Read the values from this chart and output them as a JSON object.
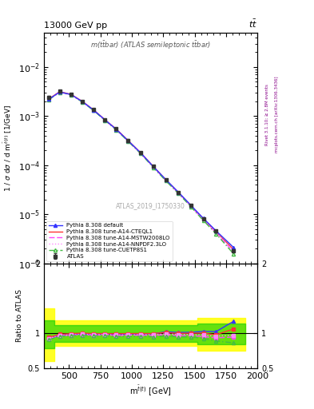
{
  "title_top": "13000 GeV pp",
  "title_right": "t$\\bar{t}$",
  "inner_title": "m(t$\\bar{t}$bar) (ATLAS semileptonic t$\\bar{t}$bar)",
  "watermark": "ATLAS_2019_I1750330",
  "right_label1": "Rivet 3.1.10; ≥ 2.8M events",
  "right_label2": "mcplots.cern.ch [arXiv:1306.3436]",
  "x_centers": [
    340,
    425,
    515,
    605,
    695,
    785,
    875,
    970,
    1070,
    1170,
    1270,
    1370,
    1470,
    1570,
    1670,
    1810
  ],
  "atlas_y": [
    0.0024,
    0.0032,
    0.0028,
    0.002,
    0.00135,
    0.00085,
    0.00055,
    0.00032,
    0.00018,
    9.5e-05,
    5e-05,
    2.8e-05,
    1.5e-05,
    8e-06,
    4.5e-06,
    1.8e-06
  ],
  "atlas_err": [
    0.00015,
    0.00015,
    0.00012,
    8e-05,
    5e-05,
    3.5e-05,
    2.5e-05,
    1.5e-05,
    8e-06,
    4e-06,
    2.2e-06,
    1.2e-06,
    7e-07,
    4e-07,
    2e-07,
    1e-07
  ],
  "py_default_y": [
    0.0022,
    0.0031,
    0.00275,
    0.00198,
    0.00133,
    0.00084,
    0.00054,
    0.000315,
    0.000178,
    9.4e-05,
    5.1e-05,
    2.82e-05,
    1.52e-05,
    8.2e-06,
    4.6e-06,
    2.1e-06
  ],
  "py_cteql1_y": [
    0.00225,
    0.00315,
    0.00278,
    0.002,
    0.00134,
    0.000845,
    0.000545,
    0.000318,
    0.000179,
    9.45e-05,
    5.05e-05,
    2.79e-05,
    1.5e-05,
    8e-06,
    4.4e-06,
    1.9e-06
  ],
  "py_mstw_y": [
    0.0022,
    0.00308,
    0.00272,
    0.00196,
    0.00131,
    0.00083,
    0.00053,
    0.00031,
    0.000175,
    9.2e-05,
    4.9e-05,
    2.7e-05,
    1.45e-05,
    7.6e-06,
    4.2e-06,
    1.7e-06
  ],
  "py_nnpdf_y": [
    0.00222,
    0.0031,
    0.00273,
    0.00197,
    0.00132,
    0.000835,
    0.000535,
    0.000312,
    0.000176,
    9.3e-05,
    4.95e-05,
    2.75e-05,
    1.47e-05,
    7.8e-06,
    4.3e-06,
    1.75e-06
  ],
  "py_cuetp_y": [
    0.00218,
    0.00305,
    0.0027,
    0.00194,
    0.0013,
    0.00082,
    0.000525,
    0.000305,
    0.000172,
    9e-05,
    4.8e-05,
    2.65e-05,
    1.42e-05,
    7.4e-06,
    4e-06,
    1.55e-06
  ],
  "ratio_default": [
    0.92,
    0.97,
    0.98,
    0.99,
    0.985,
    0.99,
    0.98,
    0.985,
    0.99,
    0.99,
    1.02,
    1.01,
    1.013,
    1.025,
    1.022,
    1.17
  ],
  "ratio_cteql1": [
    0.94,
    0.984,
    0.993,
    1.0,
    0.993,
    0.994,
    0.991,
    0.994,
    0.994,
    0.995,
    1.01,
    0.996,
    1.0,
    1.0,
    0.978,
    1.06
  ],
  "ratio_mstw": [
    0.92,
    0.963,
    0.971,
    0.98,
    0.97,
    0.976,
    0.964,
    0.969,
    0.972,
    0.968,
    0.98,
    0.964,
    0.967,
    0.95,
    0.933,
    0.944
  ],
  "ratio_nnpdf": [
    0.925,
    0.969,
    0.975,
    0.985,
    0.978,
    0.982,
    0.973,
    0.975,
    0.978,
    0.979,
    0.99,
    0.982,
    0.98,
    0.975,
    0.956,
    0.972
  ],
  "ratio_cuetp": [
    0.908,
    0.953,
    0.964,
    0.97,
    0.963,
    0.965,
    0.955,
    0.953,
    0.956,
    0.947,
    0.96,
    0.946,
    0.947,
    0.925,
    0.889,
    0.861
  ],
  "xlim": [
    300,
    2000
  ],
  "ylim_main": [
    1e-06,
    0.05
  ],
  "ylim_ratio": [
    0.5,
    2.0
  ],
  "color_atlas": "#333333",
  "color_default": "#3333ff",
  "color_cteql1": "#ff3333",
  "color_mstw": "#ff44ff",
  "color_nnpdf": "#ff88ff",
  "color_cuetp": "#44bb44",
  "color_yellow": "#ffff00",
  "color_green": "#00cc00"
}
